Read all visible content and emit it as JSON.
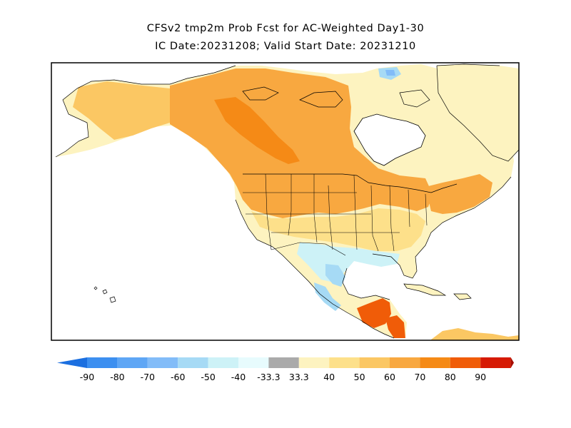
{
  "title": {
    "line1": "CFSv2 tmp2m Prob Fcst for AC-Weighted Day1-30",
    "line2": "IC Date:20231208; Valid Start Date: 20231210"
  },
  "legend": {
    "labels": [
      "-90",
      "-80",
      "-70",
      "-60",
      "-50",
      "-40",
      "-33.3",
      "33.3",
      "40",
      "50",
      "60",
      "70",
      "80",
      "90"
    ],
    "colors": [
      "#1b6fe0",
      "#3c8ff0",
      "#5ea6f5",
      "#82bcf8",
      "#a6daf5",
      "#cdf2f7",
      "#e7fbfd",
      "#aaaaaa",
      "#fdf3c0",
      "#fde08a",
      "#fbc763",
      "#f8a840",
      "#f58a16",
      "#f05c08",
      "#d61a04",
      "#a50d02"
    ]
  },
  "map": {
    "region": "North America",
    "fill_colors": {
      "ocean": "#ffffff",
      "light_yellow": "#fdf3c0",
      "yellow": "#fde08a",
      "light_orange": "#fbc763",
      "orange": "#f8a840",
      "dark_orange": "#f58a16",
      "red_orange": "#f05c08",
      "light_cyan": "#cdf2f7",
      "cyan": "#a6daf5",
      "light_blue": "#82bcf8",
      "neutral": "#ffffff"
    }
  }
}
